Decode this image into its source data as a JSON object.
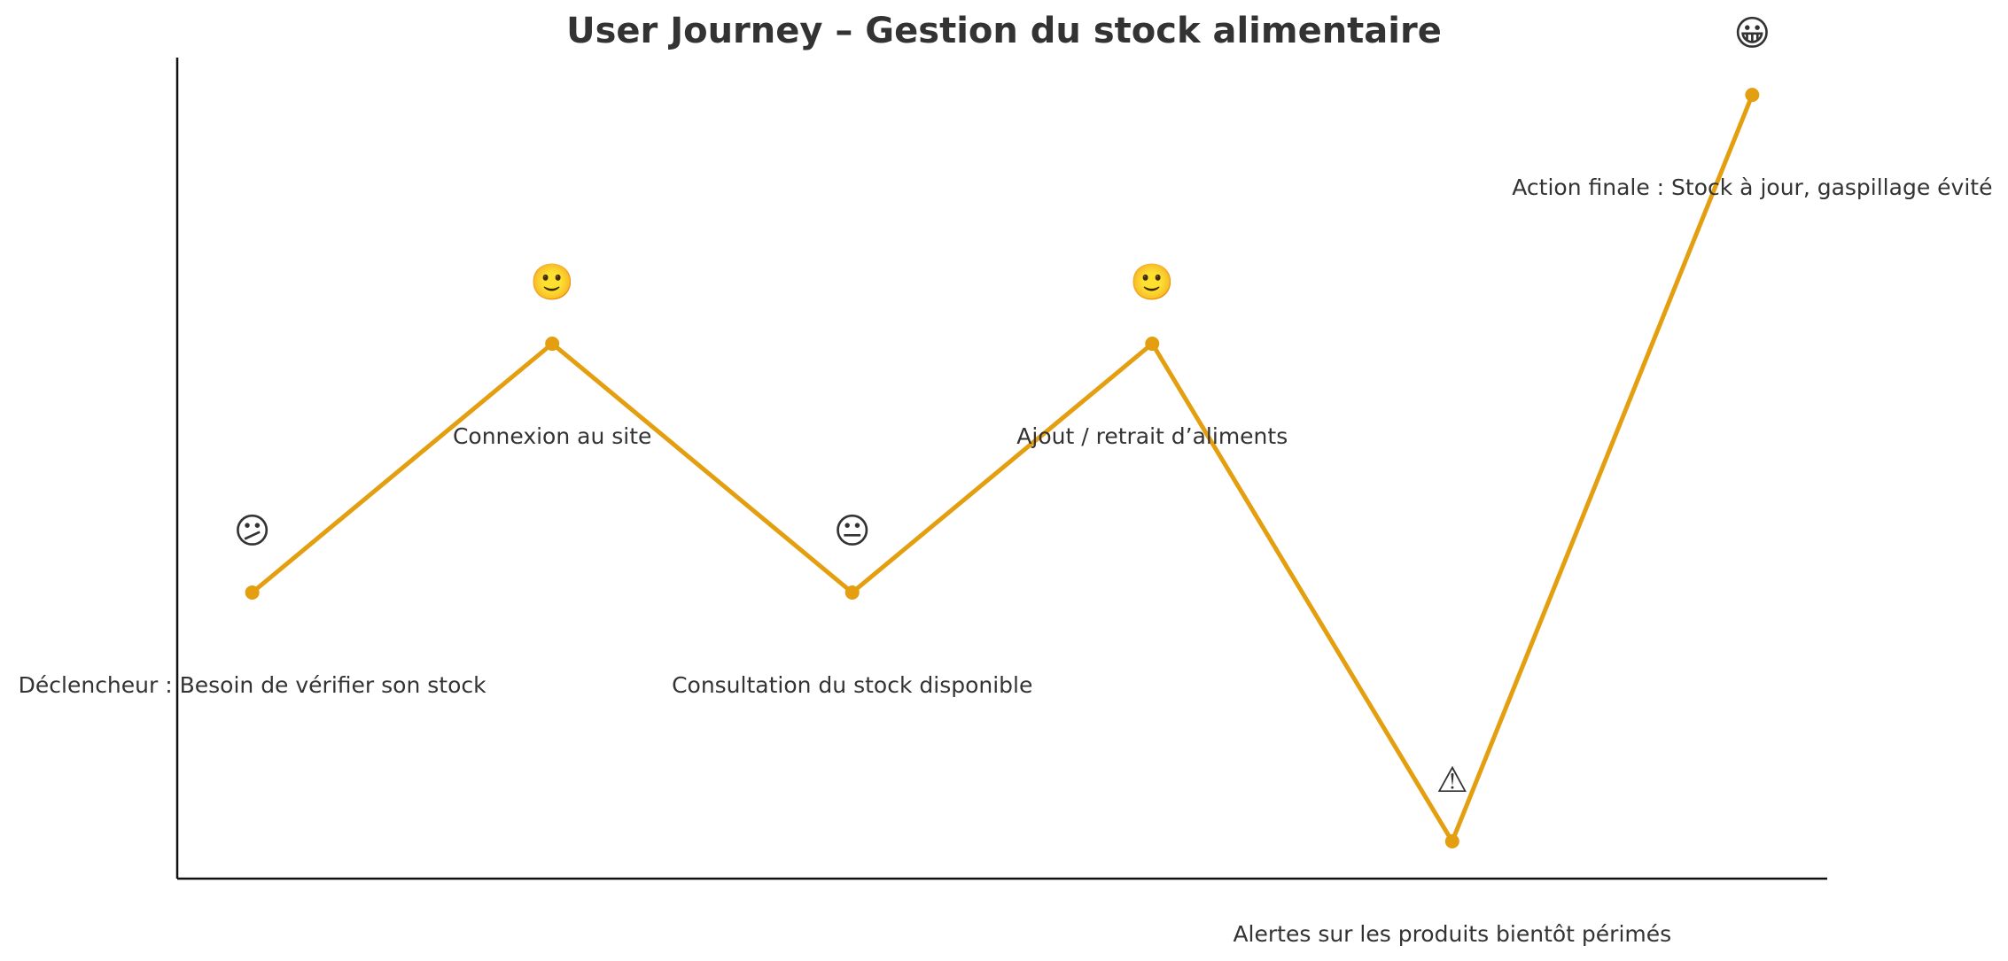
{
  "chart_data": {
    "type": "line",
    "title": "User Journey – Gestion du stock alimentaire",
    "xlabel": "",
    "ylabel": "",
    "grid": false,
    "legend": "none",
    "color": "#E39F0F",
    "points": [
      {
        "x": 1,
        "y": 2,
        "label": "Déclencheur : Besoin de vérifier son stock",
        "emoji": "😕",
        "label_side": "below"
      },
      {
        "x": 2,
        "y": 3,
        "label": "Connexion au site",
        "emoji": "🙂",
        "label_side": "below"
      },
      {
        "x": 3,
        "y": 2,
        "label": "Consultation du stock disponible",
        "emoji": "😐",
        "label_side": "below"
      },
      {
        "x": 4,
        "y": 3,
        "label": "Ajout / retrait d’aliments",
        "emoji": "🙂",
        "label_side": "below"
      },
      {
        "x": 5,
        "y": 1,
        "label": "Alertes sur les produits bientôt périmés",
        "emoji": "⚠",
        "label_side": "below"
      },
      {
        "x": 6,
        "y": 4,
        "label": "Action finale : Stock à jour, gaspillage évité",
        "emoji": "😀",
        "label_side": "below"
      }
    ],
    "xlim": [
      0.75,
      6.25
    ],
    "ylim": [
      0.85,
      4.15
    ]
  }
}
